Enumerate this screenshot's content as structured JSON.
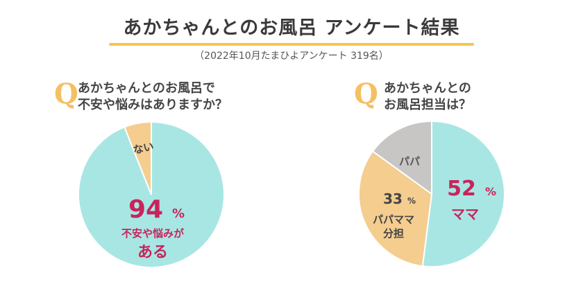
{
  "header": {
    "title": "あかちゃんとのお風呂 アンケート結果",
    "subtitle": "（2022年10月たまひよアンケート 319名）"
  },
  "colors": {
    "teal": "#a8e6e4",
    "peach": "#f4cd8f",
    "gray": "#c8c6c5",
    "accent_pink": "#c8245a",
    "q_orange": "#f4c064",
    "underline": "#f4c64a"
  },
  "question1": {
    "q": "Q",
    "line1": "あかちゃんとのお風呂で",
    "line2": "不安や悩みはありますか？"
  },
  "question2": {
    "q": "Q",
    "line1": "あかちゃんとの",
    "line2": "お風呂担当は？"
  },
  "chart1_labels": {
    "big_number": "94",
    "big_unit": "%",
    "caption_line1": "不安や悩みが",
    "caption_line2": "ある",
    "small_slice": "ない"
  },
  "chart2_labels": {
    "mama_number": "52",
    "mama_unit": "%",
    "mama_name": "ママ",
    "shared_number": "33",
    "shared_unit": "%",
    "shared_line1": "パパママ",
    "shared_line2": "分担",
    "papa_name": "パパ"
  },
  "chart_data": [
    {
      "type": "pie",
      "title": "あかちゃんとのお風呂で不安や悩みはありますか？",
      "categories": [
        "不安や悩みがある",
        "ない"
      ],
      "values": [
        94,
        6
      ]
    },
    {
      "type": "pie",
      "title": "あかちゃんとのお風呂担当は？",
      "categories": [
        "ママ",
        "パパママ分担",
        "パパ"
      ],
      "values": [
        52,
        33,
        15
      ]
    }
  ]
}
